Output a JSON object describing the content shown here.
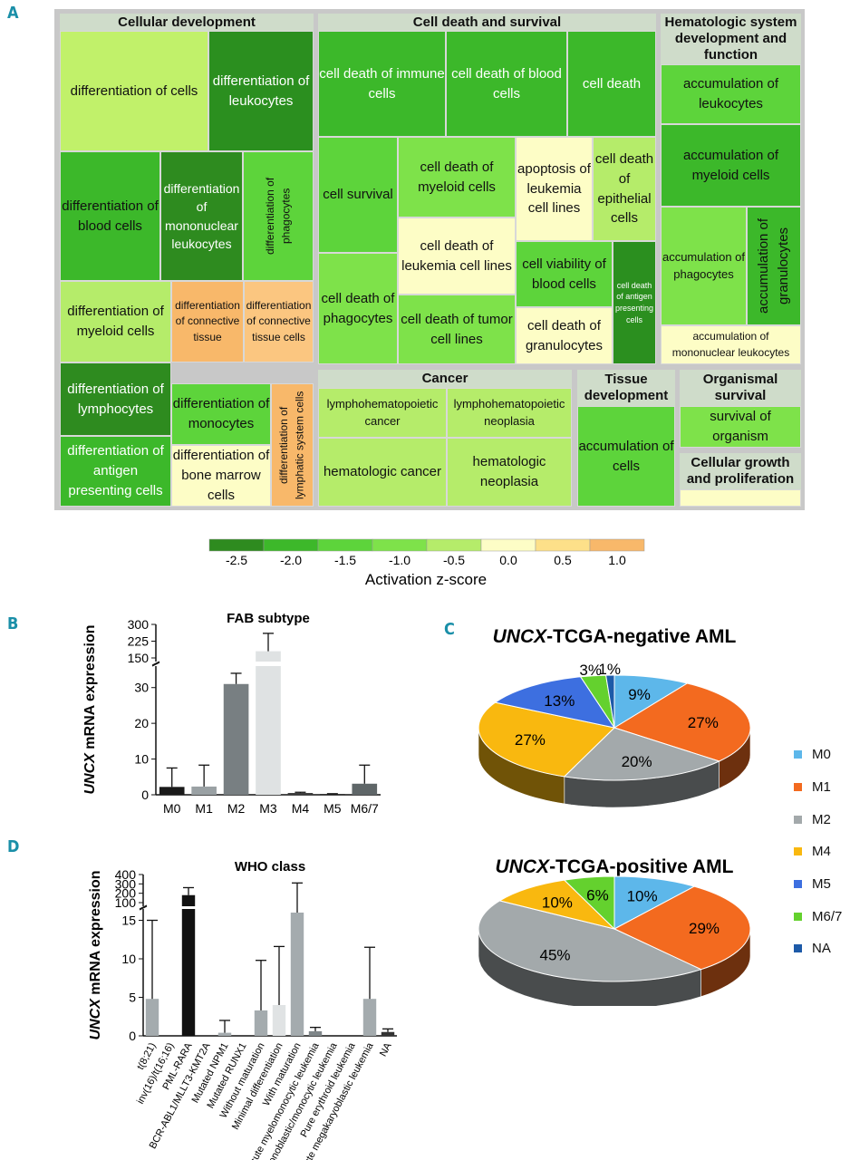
{
  "panel_labels": {
    "A": "A",
    "B": "B",
    "C": "C",
    "D": "D"
  },
  "colorscale": {
    "title": "Activation z-score",
    "ticks": [
      "-2.5",
      "-2.0",
      "-1.5",
      "-1.0",
      "-0.5",
      "0.0",
      "0.5",
      "1.0"
    ],
    "colors": [
      "#2e8b1f",
      "#3db82a",
      "#5dd43b",
      "#7ee24a",
      "#b5ec6a",
      "#fdfdc6",
      "#fde089",
      "#f8b86a"
    ]
  },
  "treemap": {
    "groups": [
      "Cellular development",
      "Cell death and survival",
      "Hematologic system development and function",
      "Cancer",
      "Tissue development",
      "Organismal survival",
      "Cellular growth and proliferation"
    ],
    "tiles": [
      "differentiation of cells",
      "differentiation of leukocytes",
      "differentiation of blood cells",
      "differentiation of mononuclear leukocytes",
      "differentiation of phagocytes",
      "differentiation of myeloid cells",
      "differentiation of connective tissue",
      "differentiation of connective tissue cells",
      "differentiation of lymphocytes",
      "differentiation of monocytes",
      "differentiation of lymphatic system cells",
      "differentiation of antigen presenting cells",
      "differentiation of bone marrow cells",
      "cell death of immune cells",
      "cell death of blood cells",
      "cell death",
      "cell survival",
      "cell death of myeloid cells",
      "apoptosis of leukemia cell lines",
      "cell death of epithelial cells",
      "cell death of leukemia cell lines",
      "cell death of phagocytes",
      "cell viability of blood cells",
      "cell death of antigen presenting cells",
      "cell death of tumor cell lines",
      "cell death of granulocytes",
      "accumulation of leukocytes",
      "accumulation of myeloid cells",
      "accumulation of phagocytes",
      "accumulation of granulocytes",
      "accumulation of mononuclear leukocytes",
      "lymphohematopoietic cancer",
      "lymphohematopoietic neoplasia",
      "hematologic cancer",
      "hematologic neoplasia",
      "accumulation of cells",
      "survival of organism"
    ]
  },
  "chart_data": [
    {
      "type": "bar",
      "title": "FAB subtype",
      "ylabel_italic": "UNCX",
      "ylabel_rest": " mRNA expression",
      "categories": [
        "M0",
        "M1",
        "M2",
        "M3",
        "M4",
        "M5",
        "M6/7"
      ],
      "values": [
        2.2,
        2.3,
        31,
        180,
        0.5,
        0.2,
        3.1
      ],
      "error_upper": [
        7.5,
        8.3,
        34,
        260,
        0.7,
        0.3,
        8.3
      ],
      "colors": [
        "#1a1a1a",
        "#9aa1a4",
        "#787f82",
        "#dfe2e3",
        "#3a3a3a",
        "#222222",
        "#5f6668"
      ],
      "lower_ticks": [
        "0",
        "10",
        "20",
        "30"
      ],
      "upper_ticks": [
        "150",
        "225",
        "300"
      ],
      "axis_break": [
        35,
        150
      ]
    },
    {
      "type": "pie",
      "title_italic": "UNCX",
      "title_rest": "-TCGA-negative AML",
      "slices": [
        {
          "label": "M0",
          "value": 9,
          "text": "9%"
        },
        {
          "label": "M1",
          "value": 27,
          "text": "27%"
        },
        {
          "label": "M2",
          "value": 20,
          "text": "20%"
        },
        {
          "label": "M4",
          "value": 27,
          "text": "27%"
        },
        {
          "label": "M5",
          "value": 13,
          "text": "13%"
        },
        {
          "label": "M6/7",
          "value": 3,
          "text": "3%"
        },
        {
          "label": "NA",
          "value": 1,
          "text": "1%"
        }
      ]
    },
    {
      "type": "pie",
      "title_italic": "UNCX",
      "title_rest": "-TCGA-positive AML",
      "slices": [
        {
          "label": "M0",
          "value": 10,
          "text": "10%"
        },
        {
          "label": "M1",
          "value": 29,
          "text": "29%"
        },
        {
          "label": "M2",
          "value": 45,
          "text": "45%"
        },
        {
          "label": "M4",
          "value": 10,
          "text": "10%"
        },
        {
          "label": "M6/7",
          "value": 6,
          "text": "6%"
        }
      ]
    },
    {
      "type": "bar",
      "title": "WHO class",
      "ylabel_italic": "UNCX",
      "ylabel_rest": " mRNA expression",
      "categories": [
        "t(8;21)",
        "inv(16)/t(16;16)",
        "PML-RARA",
        "BCR-ABL1/MLLT3-KMT2A",
        "Mutated NPM1",
        "Mutated RUNX1",
        "Without maturation",
        "Minimal differentiation",
        "With maturation",
        "Acute myelomonocytic leukemia",
        "Monoblastic/monocytic leukemia",
        "Pure erythroid leukemia",
        "Acute megakaryoblastic leukemia",
        "NA"
      ],
      "values": [
        4.8,
        0,
        180,
        0,
        0.4,
        0,
        3.3,
        4.0,
        80,
        0.6,
        0,
        0,
        4.8,
        0.5
      ],
      "error_upper": [
        15,
        0,
        260,
        0,
        2.0,
        0,
        9.8,
        11.6,
        310,
        1.1,
        0,
        0,
        11.5,
        0.9
      ],
      "colors": [
        "#a4abae",
        "#a4abae",
        "#111111",
        "#a4abae",
        "#a4abae",
        "#a4abae",
        "#a4abae",
        "#e0e3e4",
        "#a4abae",
        "#7f8689",
        "#a4abae",
        "#a4abae",
        "#a4abae",
        "#333333"
      ],
      "lower_ticks": [
        "0",
        "5",
        "10",
        "15"
      ],
      "upper_ticks": [
        "100",
        "200",
        "300",
        "400"
      ],
      "axis_break": [
        16,
        100
      ]
    }
  ],
  "legend": {
    "items": [
      {
        "label": "M0",
        "color": "#5db7ea"
      },
      {
        "label": "M1",
        "color": "#f36a1f"
      },
      {
        "label": "M2",
        "color": "#a3a9ab"
      },
      {
        "label": "M4",
        "color": "#f9b80f"
      },
      {
        "label": "M5",
        "color": "#3d6fe0"
      },
      {
        "label": "M6/7",
        "color": "#64d12e"
      },
      {
        "label": "NA",
        "color": "#1d5aa8"
      }
    ]
  }
}
